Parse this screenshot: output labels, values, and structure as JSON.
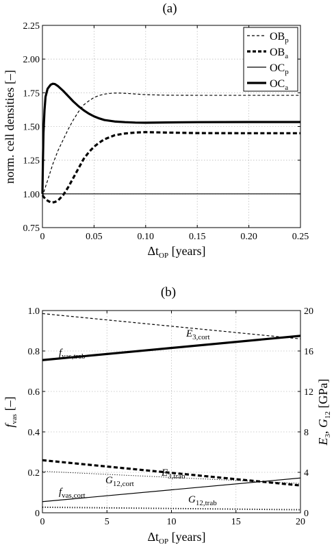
{
  "chart_data": [
    {
      "type": "line",
      "panel_label": "(a)",
      "ylabel": "norm. cell densities [–]",
      "xlabel": {
        "prefix": "Δt",
        "sub": "OP",
        "suffix": " [years]"
      },
      "xlim": [
        0,
        0.25
      ],
      "ylim": [
        0.75,
        2.25
      ],
      "x_ticks": [
        "0",
        "0.05",
        "0.10",
        "0.15",
        "0.20",
        "0.25"
      ],
      "y_ticks": [
        "0.75",
        "1.00",
        "1.25",
        "1.50",
        "1.75",
        "2.00",
        "2.25"
      ],
      "grid": true,
      "legend_position": "top-right",
      "series": [
        {
          "name": "OB",
          "name_sub": "p",
          "style": "thin-dashed",
          "points": [
            [
              0,
              0.98
            ],
            [
              0.002,
              1.03
            ],
            [
              0.005,
              1.1
            ],
            [
              0.01,
              1.22
            ],
            [
              0.015,
              1.32
            ],
            [
              0.02,
              1.4
            ],
            [
              0.025,
              1.48
            ],
            [
              0.03,
              1.55
            ],
            [
              0.035,
              1.61
            ],
            [
              0.04,
              1.66
            ],
            [
              0.045,
              1.69
            ],
            [
              0.05,
              1.715
            ],
            [
              0.055,
              1.73
            ],
            [
              0.06,
              1.74
            ],
            [
              0.065,
              1.745
            ],
            [
              0.07,
              1.748
            ],
            [
              0.075,
              1.748
            ],
            [
              0.08,
              1.746
            ],
            [
              0.09,
              1.741
            ],
            [
              0.1,
              1.736
            ],
            [
              0.12,
              1.732
            ],
            [
              0.15,
              1.731
            ],
            [
              0.2,
              1.731
            ],
            [
              0.25,
              1.731
            ]
          ]
        },
        {
          "name": "OB",
          "name_sub": "a",
          "style": "thick-dashed",
          "points": [
            [
              0,
              0.99
            ],
            [
              0.003,
              0.96
            ],
            [
              0.006,
              0.945
            ],
            [
              0.009,
              0.935
            ],
            [
              0.012,
              0.94
            ],
            [
              0.015,
              0.95
            ],
            [
              0.02,
              0.99
            ],
            [
              0.025,
              1.05
            ],
            [
              0.03,
              1.12
            ],
            [
              0.035,
              1.19
            ],
            [
              0.04,
              1.26
            ],
            [
              0.045,
              1.31
            ],
            [
              0.05,
              1.35
            ],
            [
              0.055,
              1.38
            ],
            [
              0.06,
              1.405
            ],
            [
              0.065,
              1.42
            ],
            [
              0.07,
              1.435
            ],
            [
              0.08,
              1.448
            ],
            [
              0.09,
              1.455
            ],
            [
              0.1,
              1.458
            ],
            [
              0.12,
              1.455
            ],
            [
              0.15,
              1.451
            ],
            [
              0.2,
              1.45
            ],
            [
              0.25,
              1.45
            ]
          ]
        },
        {
          "name": "OC",
          "name_sub": "p",
          "style": "thin-solid",
          "points": [
            [
              0,
              1.0
            ],
            [
              0.25,
              1.0
            ]
          ]
        },
        {
          "name": "OC",
          "name_sub": "a",
          "style": "thick-solid",
          "points": [
            [
              0,
              1.0
            ],
            [
              0.0005,
              1.25
            ],
            [
              0.001,
              1.45
            ],
            [
              0.002,
              1.62
            ],
            [
              0.003,
              1.72
            ],
            [
              0.005,
              1.78
            ],
            [
              0.008,
              1.81
            ],
            [
              0.01,
              1.817
            ],
            [
              0.012,
              1.815
            ],
            [
              0.015,
              1.8
            ],
            [
              0.02,
              1.765
            ],
            [
              0.025,
              1.725
            ],
            [
              0.03,
              1.685
            ],
            [
              0.035,
              1.65
            ],
            [
              0.04,
              1.62
            ],
            [
              0.045,
              1.595
            ],
            [
              0.05,
              1.575
            ],
            [
              0.055,
              1.56
            ],
            [
              0.06,
              1.548
            ],
            [
              0.07,
              1.537
            ],
            [
              0.08,
              1.532
            ],
            [
              0.09,
              1.529
            ],
            [
              0.1,
              1.528
            ],
            [
              0.12,
              1.53
            ],
            [
              0.15,
              1.532
            ],
            [
              0.2,
              1.533
            ],
            [
              0.25,
              1.533
            ]
          ]
        }
      ]
    },
    {
      "type": "line",
      "panel_label": "(b)",
      "ylabel": {
        "prefix": "f",
        "sub": "vas",
        "suffix": " [–]"
      },
      "ylabel_right": {
        "a": "E",
        "a_sub": "3",
        "b": "G",
        "b_sub": "12",
        "suffix": " [GPa]"
      },
      "xlabel": {
        "prefix": "Δt",
        "sub": "OP",
        "suffix": " [years]"
      },
      "xlim": [
        0,
        20
      ],
      "ylim": [
        0,
        1.0
      ],
      "ylim_right": [
        0,
        20
      ],
      "x_ticks": [
        "0",
        "5",
        "10",
        "15",
        "20"
      ],
      "y_ticks": [
        "0",
        "0.2",
        "0.4",
        "0.6",
        "0.8",
        "1.0"
      ],
      "y_ticks_right": [
        "0",
        "4",
        "8",
        "12",
        "16",
        "20"
      ],
      "grid": true,
      "series": [
        {
          "name": "E",
          "name_sub": "3,cort",
          "axis": "right",
          "style": "thin-dashed",
          "points": [
            [
              0,
              19.7
            ],
            [
              20,
              17.2
            ]
          ]
        },
        {
          "name": "f",
          "name_sub": "vas,trab",
          "axis": "left",
          "style": "thick-solid",
          "points": [
            [
              0,
              0.755
            ],
            [
              20,
              0.875
            ]
          ]
        },
        {
          "name": "E",
          "name_sub": "3,trab",
          "axis": "right",
          "style": "thick-dashed",
          "points": [
            [
              0,
              5.2
            ],
            [
              20,
              2.7
            ]
          ]
        },
        {
          "name": "G",
          "name_sub": "12,cort",
          "axis": "right",
          "style": "dotted",
          "points": [
            [
              0,
              4.1
            ],
            [
              20,
              2.9
            ]
          ]
        },
        {
          "name": "f",
          "name_sub": "vas,cort",
          "axis": "left",
          "style": "thin-solid",
          "points": [
            [
              0,
              0.055
            ],
            [
              20,
              0.172
            ]
          ]
        },
        {
          "name": "G",
          "name_sub": "12,trab",
          "axis": "right",
          "style": "thick-dotted",
          "points": [
            [
              0,
              0.55
            ],
            [
              20,
              0.3
            ]
          ]
        }
      ]
    }
  ]
}
